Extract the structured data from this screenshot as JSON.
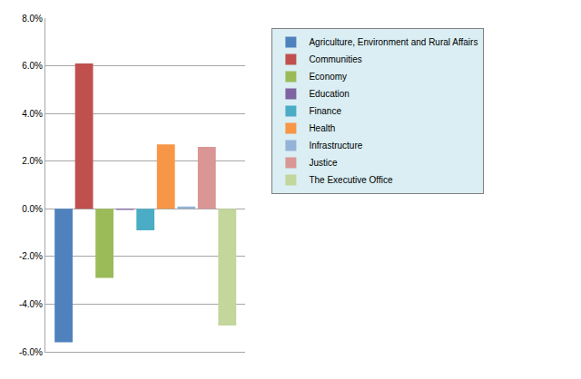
{
  "chart_data": {
    "type": "bar",
    "categories": [
      null
    ],
    "series": [
      {
        "name": "Agriculture, Environment and Rural Affairs",
        "color": "#4F81BD",
        "values": [
          -5.6
        ]
      },
      {
        "name": "Communities",
        "color": "#C0504D",
        "values": [
          6.1
        ]
      },
      {
        "name": "Economy",
        "color": "#9BBB59",
        "values": [
          -2.9
        ]
      },
      {
        "name": "Education",
        "color": "#8064A2",
        "values": [
          -0.05
        ]
      },
      {
        "name": "Finance",
        "color": "#4BACC6",
        "values": [
          -0.9
        ]
      },
      {
        "name": "Health",
        "color": "#F79646",
        "values": [
          2.7
        ]
      },
      {
        "name": "Infrastructure",
        "color": "#95B3D7",
        "values": [
          0.1
        ]
      },
      {
        "name": "Justice",
        "color": "#D99694",
        "values": [
          2.6
        ]
      },
      {
        "name": "The Executive Office",
        "color": "#C3D69B",
        "values": [
          -4.9
        ]
      }
    ],
    "ylim": [
      -6,
      8
    ],
    "yticks": [
      {
        "value": -6,
        "label": "-6.0%"
      },
      {
        "value": -4,
        "label": "-4.0%"
      },
      {
        "value": -2,
        "label": "-2.0%"
      },
      {
        "value": 0,
        "label": "0.0%"
      },
      {
        "value": 2,
        "label": "2.0%"
      },
      {
        "value": 4,
        "label": "4.0%"
      },
      {
        "value": 6,
        "label": "6.0%"
      },
      {
        "value": 8,
        "label": "8.0%"
      }
    ],
    "grid": true,
    "legend": "right",
    "tick_labels": "y"
  }
}
